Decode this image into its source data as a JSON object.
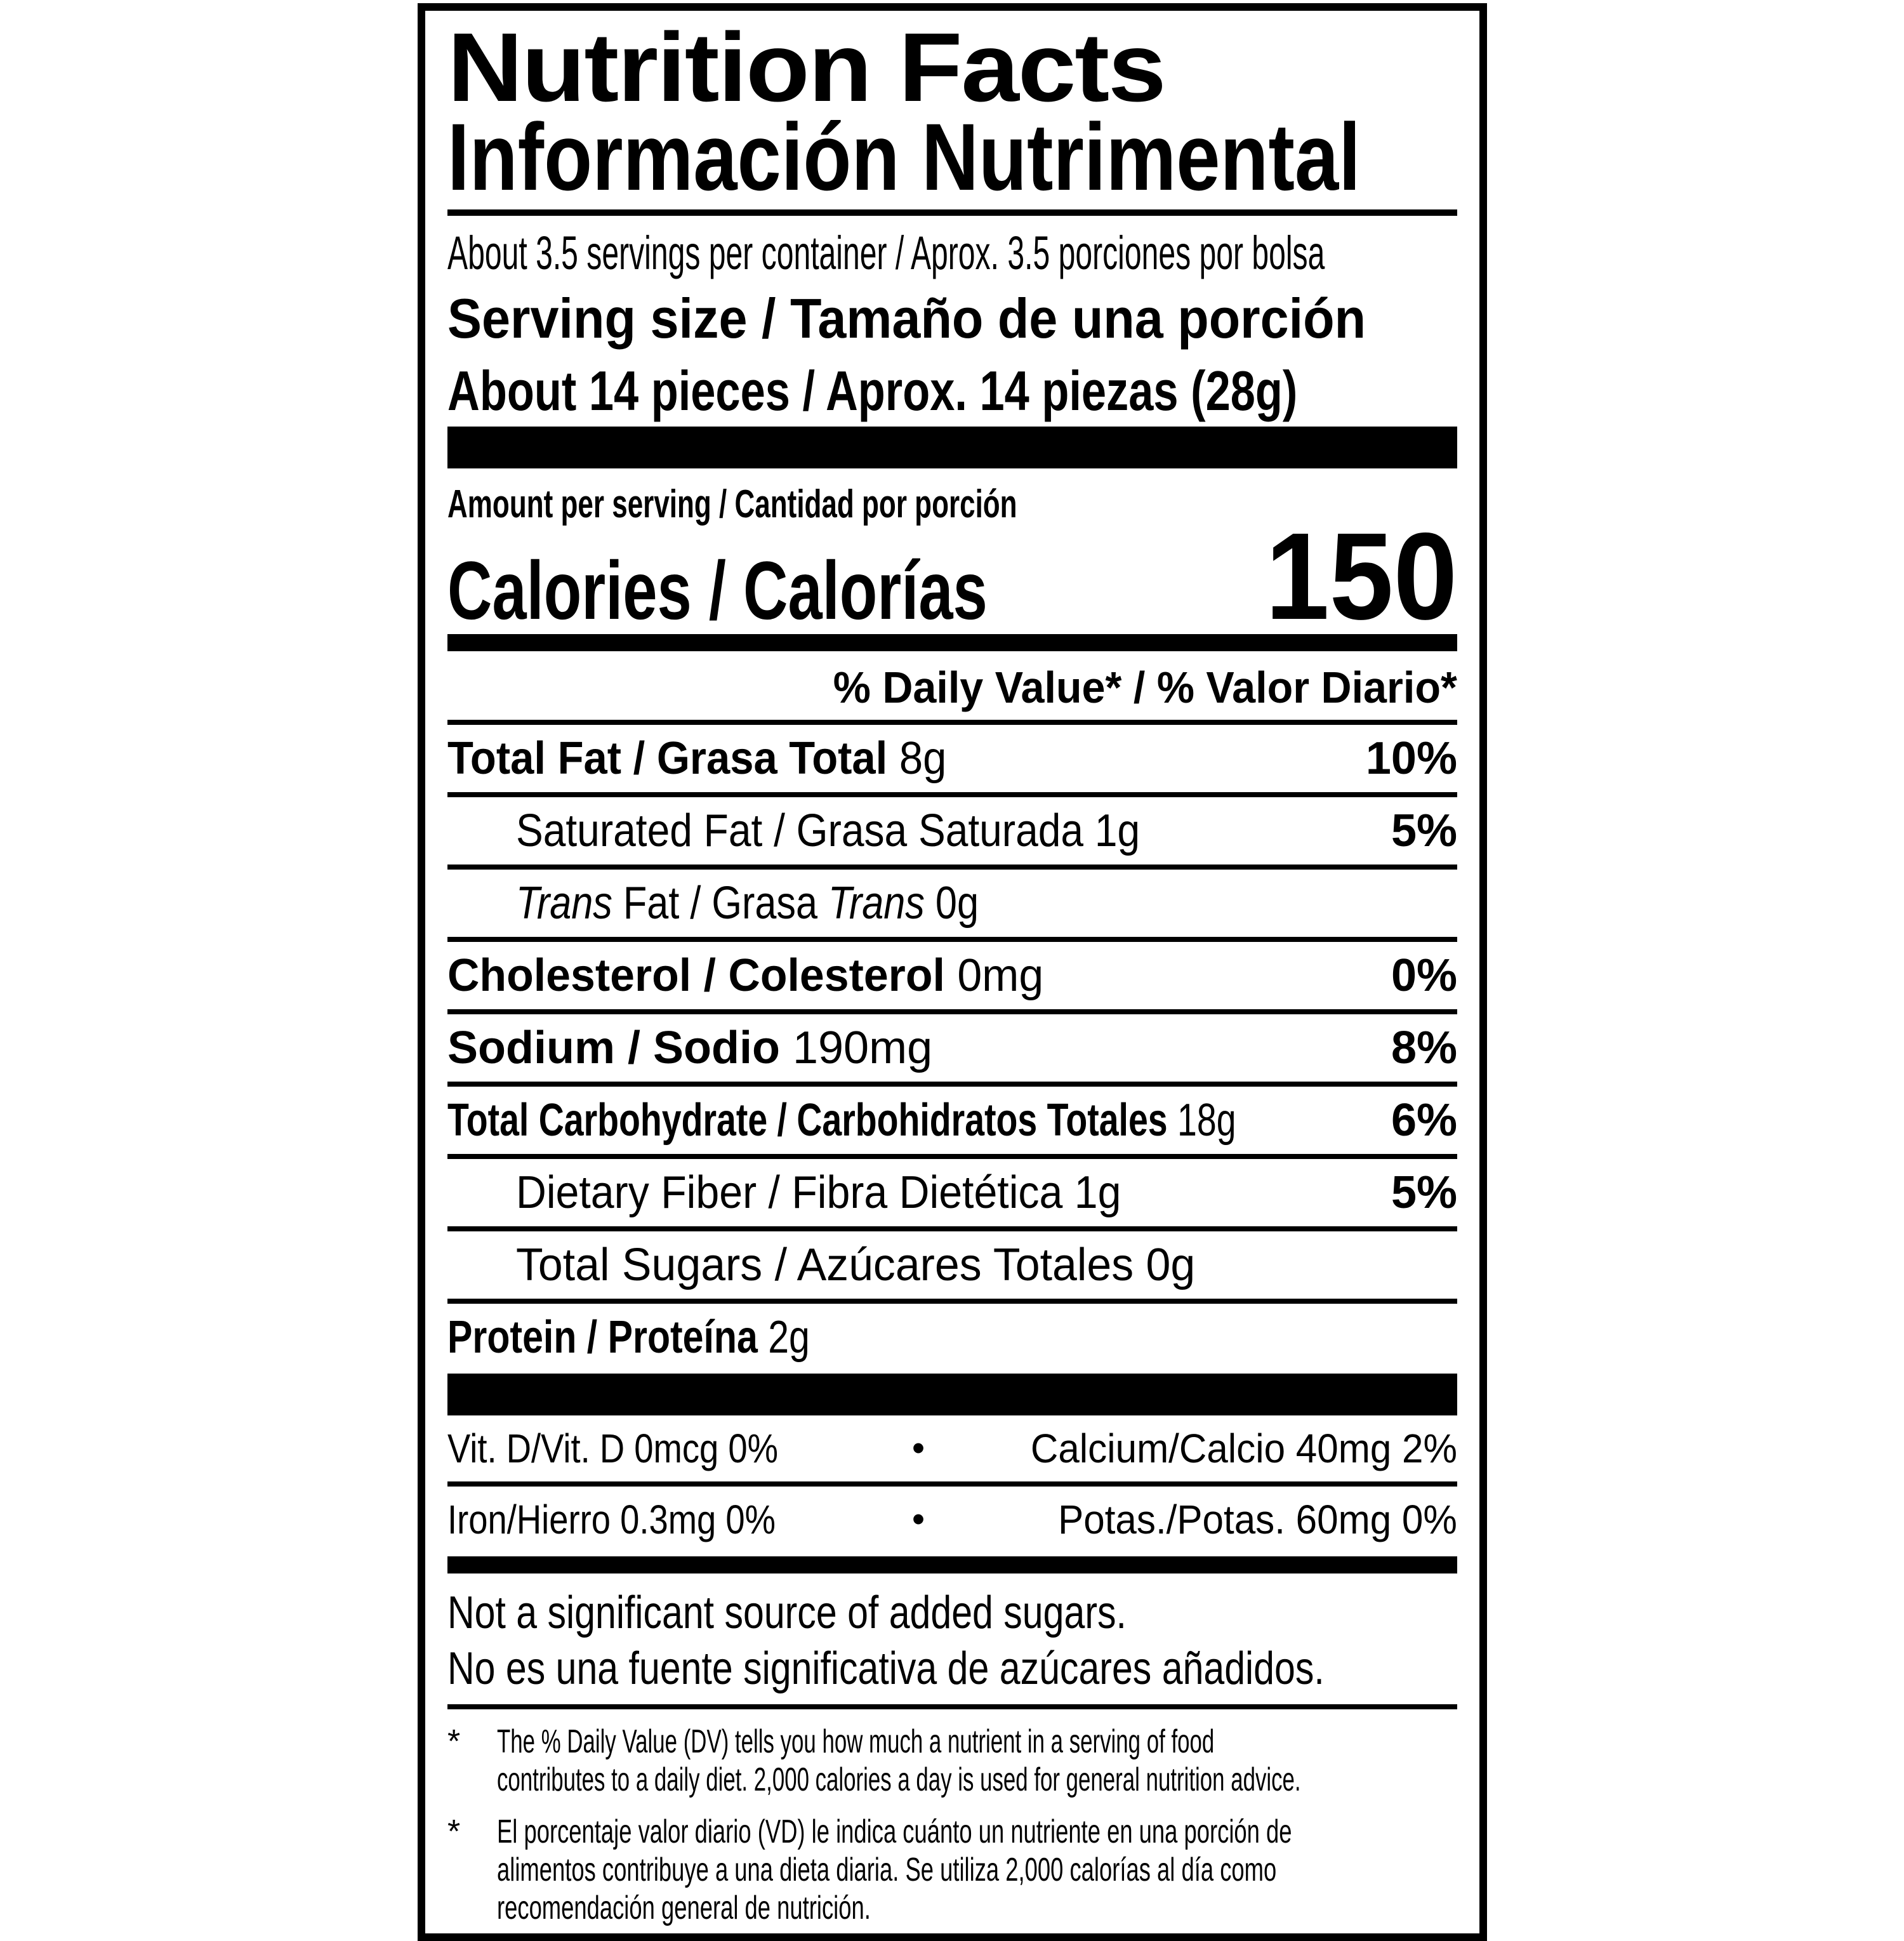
{
  "label": {
    "title_en": "Nutrition Facts",
    "title_es": "Información Nutrimental",
    "servings_per_container": "About 3.5 servings per container / Aprox. 3.5 porciones por bolsa",
    "serving_size_label": "Serving size / Tamaño de una porción",
    "serving_size_value": "About 14 pieces / Aprox. 14 piezas (28g)",
    "amount_per_serving": "Amount per serving / Cantidad por porción",
    "calories_label": "Calories / Calorías",
    "calories_value": "150",
    "daily_value_header": "% Daily Value* / % Valor Diario*",
    "colors": {
      "text": "#000000",
      "background": "#ffffff"
    }
  },
  "rows": [
    {
      "parts": [
        {
          "text": "Total Fat / Grasa Total",
          "bold": true
        },
        {
          "text": " 8g"
        }
      ],
      "dv": "10%",
      "indent": false
    },
    {
      "parts": [
        {
          "text": "Saturated Fat / Grasa Saturada 1g"
        }
      ],
      "dv": "5%",
      "indent": true
    },
    {
      "parts": [
        {
          "text": "Trans",
          "italic": true
        },
        {
          "text": " Fat / Grasa "
        },
        {
          "text": "Trans",
          "italic": true
        },
        {
          "text": " 0g"
        }
      ],
      "dv": "",
      "indent": true
    },
    {
      "parts": [
        {
          "text": "Cholesterol / Colesterol",
          "bold": true
        },
        {
          "text": " 0mg"
        }
      ],
      "dv": "0%",
      "indent": false
    },
    {
      "parts": [
        {
          "text": "Sodium / Sodio",
          "bold": true
        },
        {
          "text": " 190mg"
        }
      ],
      "dv": "8%",
      "indent": false
    },
    {
      "parts": [
        {
          "text": "Total Carbohydrate / Carbohidratos Totales",
          "bold": true
        },
        {
          "text": " 18g"
        }
      ],
      "dv": "6%",
      "indent": false
    },
    {
      "parts": [
        {
          "text": "Dietary Fiber / Fibra Dietética 1g"
        }
      ],
      "dv": "5%",
      "indent": true
    },
    {
      "parts": [
        {
          "text": "Total Sugars / Azúcares Totales 0g"
        }
      ],
      "dv": "",
      "indent": true
    },
    {
      "parts": [
        {
          "text": "Protein / Proteína",
          "bold": true
        },
        {
          "text": " 2g"
        }
      ],
      "dv": "",
      "indent": false
    }
  ],
  "vitamins": {
    "bullet": "•",
    "rows": [
      {
        "left": "Vit. D/Vit. D 0mcg 0%",
        "right": "Calcium/Calcio 40mg 2%"
      },
      {
        "left": "Iron/Hierro 0.3mg 0%",
        "right": "Potas./Potas. 60mg 0%"
      }
    ]
  },
  "notes": [
    "Not a significant source of added sugars.",
    "No es una fuente significativa de azúcares añadidos."
  ],
  "footnotes": [
    {
      "marker": "*",
      "lang": "en",
      "lines": [
        "The % Daily Value (DV) tells you how much a nutrient in a serving of food",
        "contributes to a daily diet. 2,000 calories a day is used for general nutrition advice."
      ]
    },
    {
      "marker": "*",
      "lang": "es",
      "lines": [
        "El porcentaje valor diario (VD) le indica cuánto un nutriente en una porción de",
        "alimentos contribuye a una dieta diaria. Se utiliza 2,000 calorías al día como",
        "recomendación general de nutrición."
      ]
    }
  ]
}
